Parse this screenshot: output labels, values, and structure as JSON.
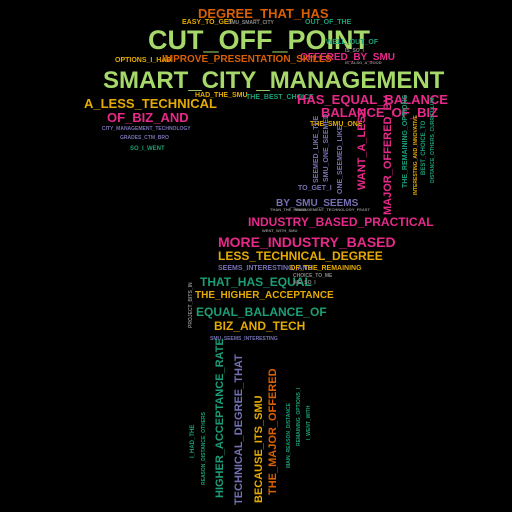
{
  "palette": {
    "background": "#000000",
    "green": "#a6d96a",
    "pink": "#e7298a",
    "orange": "#d95f02",
    "teal": "#1b9e77",
    "purple": "#7570b3",
    "yellow": "#e6ab02",
    "lime": "#66a61e",
    "brown": "#a6761d",
    "grey": "#888888"
  },
  "words": [
    {
      "id": "w-cut-off-point",
      "text": "CUT_OFF_POINT",
      "color": "green",
      "weight": 10
    },
    {
      "id": "w-smart-city-management",
      "text": "SMART_CITY_MANAGEMENT",
      "color": "green",
      "weight": 10
    },
    {
      "id": "w-degree-that-has",
      "text": "DEGREE_THAT_HAS",
      "color": "orange",
      "weight": 6
    },
    {
      "id": "w-more-industry-based",
      "text": "MORE_INDUSTRY_BASED",
      "color": "pink",
      "weight": 7
    },
    {
      "id": "w-less-technical-degree",
      "text": "LESS_TECHNICAL_DEGREE",
      "color": "yellow",
      "weight": 6
    },
    {
      "id": "w-industry-based-practical",
      "text": "INDUSTRY_BASED_PRACTICAL",
      "color": "pink",
      "weight": 6
    },
    {
      "id": "w-has-equal-balance",
      "text": "HAS_EQUAL_BALANCE",
      "color": "pink",
      "weight": 6
    },
    {
      "id": "w-balance-of-biz",
      "text": "BALANCE_OF_BIZ",
      "color": "pink",
      "weight": 6
    },
    {
      "id": "w-a-less-technical",
      "text": "A_LESS_TECHNICAL",
      "color": "yellow",
      "weight": 6
    },
    {
      "id": "w-of-biz-and",
      "text": "OF_BIZ_AND",
      "color": "pink",
      "weight": 6
    },
    {
      "id": "w-improve-presentation-skills",
      "text": "IMPROVE_PRESENTATION_SKILLS",
      "color": "orange",
      "weight": 4
    },
    {
      "id": "w-offered-by-smu",
      "text": "OFFERED_BY_SMU",
      "color": "pink",
      "weight": 5
    },
    {
      "id": "w-that-has-equal",
      "text": "THAT_HAS_EQUAL",
      "color": "teal",
      "weight": 6
    },
    {
      "id": "w-the-higher-acceptance",
      "text": "THE_HIGHER_ACCEPTANCE",
      "color": "yellow",
      "weight": 4
    },
    {
      "id": "w-equal-balance-of",
      "text": "EQUAL_BALANCE_OF",
      "color": "teal",
      "weight": 5
    },
    {
      "id": "w-biz-and-tech",
      "text": "BIZ_AND_TECH",
      "color": "yellow",
      "weight": 5
    },
    {
      "id": "w-by-smu-seems",
      "text": "BY_SMU_SEEMS",
      "color": "purple",
      "weight": 4
    },
    {
      "id": "w-want-a-less",
      "text": "WANT_A_LESS",
      "color": "pink",
      "weight": 5
    },
    {
      "id": "w-major-offered-by",
      "text": "MAJOR_OFFERED_BY",
      "color": "pink",
      "weight": 5
    },
    {
      "id": "w-higher-acceptance-rate",
      "text": "HIGHER_ACCEPTANCE_RATE",
      "color": "teal",
      "weight": 5
    },
    {
      "id": "w-technical-degree-that",
      "text": "TECHNICAL_DEGREE_THAT",
      "color": "purple",
      "weight": 5
    },
    {
      "id": "w-because-its-smu",
      "text": "BECAUSE_ITS_SMU",
      "color": "yellow",
      "weight": 5
    },
    {
      "id": "w-the-major-offered",
      "text": "THE_MAJOR_OFFERED",
      "color": "orange",
      "weight": 5
    },
    {
      "id": "w-options-i-had",
      "text": "OPTIONS_I_HAD",
      "color": "yellow",
      "weight": 2
    },
    {
      "id": "w-had-the-smu",
      "text": "HAD_THE_SMU",
      "color": "yellow",
      "weight": 2
    },
    {
      "id": "w-the-best-choice",
      "text": "THE_BEST_CHOICE",
      "color": "teal",
      "weight": 2
    },
    {
      "id": "w-easy-to-get",
      "text": "EASY_TO_GET",
      "color": "yellow",
      "weight": 2
    },
    {
      "id": "w-smu-smart-city",
      "text": "SMU_SMART_CITY",
      "color": "grey",
      "weight": 1
    },
    {
      "id": "w-out-of-the",
      "text": "OUT_OF_THE",
      "color": "teal",
      "weight": 2
    },
    {
      "id": "w-well-out-of",
      "text": "WELL_OUT_OF",
      "color": "teal",
      "weight": 2
    },
    {
      "id": "w-is-so-i",
      "text": "IS_SO_I",
      "color": "grey",
      "weight": 1
    },
    {
      "id": "w-city-management-technology",
      "text": "CITY_MANAGEMENT_TECHNOLOGY",
      "color": "purple",
      "weight": 1
    },
    {
      "id": "w-grades-ctm-bro",
      "text": "GRADES_CTM_BRO",
      "color": "purple",
      "weight": 1
    },
    {
      "id": "w-so-i-went",
      "text": "SO_I_WENT",
      "color": "teal",
      "weight": 2
    },
    {
      "id": "w-the-smu-one",
      "text": "THE_SMU_ONE",
      "color": "yellow",
      "weight": 2
    },
    {
      "id": "w-to-get-i",
      "text": "TO_GET_I",
      "color": "purple",
      "weight": 2
    },
    {
      "id": "w-seemed-like-the",
      "text": "SEEMED_LIKE_THE",
      "color": "purple",
      "weight": 2
    },
    {
      "id": "w-smu-one-seemed",
      "text": "SMU_ONE_SEEMED",
      "color": "purple",
      "weight": 2
    },
    {
      "id": "w-one-seemed-like",
      "text": "ONE_SEEMED_LIKE",
      "color": "purple",
      "weight": 2
    },
    {
      "id": "w-the-remaining-options",
      "text": "THE_REMAINING_OPTIONS",
      "color": "teal",
      "weight": 2
    },
    {
      "id": "w-interesting-and-innovative",
      "text": "INTERESTING_AND_INNOVATIVE",
      "color": "yellow",
      "weight": 1
    },
    {
      "id": "w-distance-others-curriculum",
      "text": "DISTANCE_OTHERS_CURRICULUM",
      "color": "teal",
      "weight": 1
    },
    {
      "id": "w-best-choice-to",
      "text": "BEST_CHOICE_TO",
      "color": "teal",
      "weight": 2
    },
    {
      "id": "w-seems-interesting-and",
      "text": "SEEMS_INTERESTING_AND",
      "color": "purple",
      "weight": 2
    },
    {
      "id": "w-of-the-remaining",
      "text": "OF_THE_REMAINING",
      "color": "yellow",
      "weight": 2
    },
    {
      "id": "w-choice-to-me",
      "text": "CHOICE_TO_ME",
      "color": "grey",
      "weight": 1
    },
    {
      "id": "w-me-so-i",
      "text": "ME_SO_I",
      "color": "grey",
      "weight": 1
    },
    {
      "id": "w-smu-seems-interesting",
      "text": "SMU_SEEMS_INTERESTING",
      "color": "purple",
      "weight": 1
    },
    {
      "id": "w-i-had-the",
      "text": "I_HAD_THE",
      "color": "teal",
      "weight": 2
    },
    {
      "id": "w-reason-distance-others",
      "text": "REASON_DISTANCE_OTHERS",
      "color": "teal",
      "weight": 1
    },
    {
      "id": "w-main-reason-distance",
      "text": "MAIN_REASON_DISTANCE",
      "color": "teal",
      "weight": 1
    },
    {
      "id": "w-remaining-options-i",
      "text": "REMAINING_OPTIONS_I",
      "color": "teal",
      "weight": 1
    },
    {
      "id": "w-i-went-with",
      "text": "I_WENT_WITH",
      "color": "teal",
      "weight": 1
    },
    {
      "id": "w-project-bits-in",
      "text": "PROJECT_BITS_IN",
      "color": "grey",
      "weight": 1
    },
    {
      "id": "w-than-the-prior",
      "text": "THAN_THE_PRIOR",
      "color": "grey",
      "weight": 1
    },
    {
      "id": "w-management-technology-feast",
      "text": "MANAGEMENT_TECHNOLOGY_FEAST",
      "color": "grey",
      "weight": 1
    },
    {
      "id": "w-is-also-a-good",
      "text": "IS_ALSO_A_GOOD",
      "color": "grey",
      "weight": 1
    },
    {
      "id": "w-went-with-smu",
      "text": "WENT_WITH_SMU",
      "color": "grey",
      "weight": 1
    }
  ]
}
